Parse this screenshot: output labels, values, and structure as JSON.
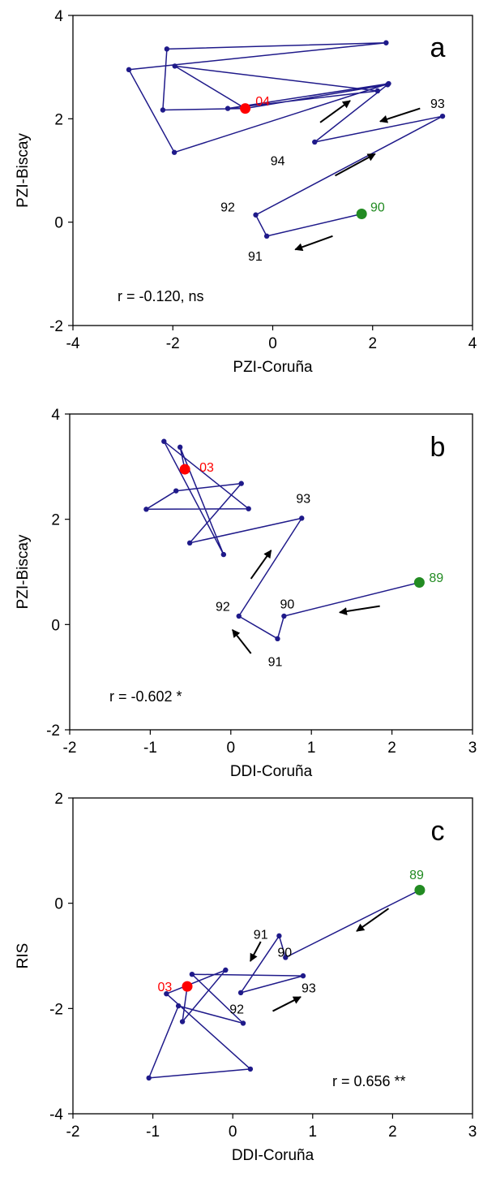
{
  "colors": {
    "line": "#1f1a8a",
    "start": "#228b22",
    "end": "#ff0000",
    "arrow": "#000000",
    "text": "#000000"
  },
  "chart_data": [
    {
      "type": "line",
      "panel_label": "a",
      "xlabel": "PZI-Coruña",
      "ylabel": "PZI-Biscay",
      "xlim": [
        -4,
        4
      ],
      "ylim": [
        -2,
        4
      ],
      "xticks": [
        "-4",
        "-2",
        "0",
        "2",
        "4"
      ],
      "yticks": [
        "4",
        "2",
        "0",
        "-2"
      ],
      "stat": "r = -0.120, ns",
      "series": [
        {
          "points": [
            [
              1.78,
              0.16
            ],
            [
              -0.12,
              -0.27
            ],
            [
              -0.34,
              0.14
            ],
            [
              3.4,
              2.05
            ],
            [
              0.84,
              1.55
            ],
            [
              2.3,
              2.66
            ],
            [
              -0.55,
              2.2
            ],
            [
              -2.2,
              2.17
            ],
            [
              -2.12,
              3.35
            ],
            [
              2.27,
              3.47
            ],
            [
              -2.88,
              2.95
            ],
            [
              -1.97,
              1.35
            ],
            [
              2.32,
              2.68
            ],
            [
              -0.9,
              2.2
            ],
            [
              2.1,
              2.54
            ],
            [
              -1.96,
              3.02
            ],
            [
              -0.55,
              2.2
            ]
          ]
        }
      ],
      "point_labels": [
        {
          "text": "90",
          "x": 2.1,
          "y": 0.3,
          "color": "start"
        },
        {
          "text": "91",
          "x": -0.35,
          "y": -0.65,
          "color": "text"
        },
        {
          "text": "92",
          "x": -0.9,
          "y": 0.3,
          "color": "text"
        },
        {
          "text": "93",
          "x": 3.3,
          "y": 2.3,
          "color": "text"
        },
        {
          "text": "94",
          "x": 0.1,
          "y": 1.2,
          "color": "text"
        },
        {
          "text": "04",
          "x": -0.2,
          "y": 2.35,
          "color": "end"
        }
      ],
      "start": [
        1.78,
        0.16
      ],
      "end": [
        -0.55,
        2.2
      ],
      "arrows": [
        {
          "from": [
            1.2,
            -0.27
          ],
          "to": [
            0.45,
            -0.53
          ]
        },
        {
          "from": [
            1.25,
            0.9
          ],
          "to": [
            2.05,
            1.32
          ]
        },
        {
          "from": [
            2.95,
            2.2
          ],
          "to": [
            2.15,
            1.95
          ]
        },
        {
          "from": [
            0.95,
            1.93
          ],
          "to": [
            1.55,
            2.35
          ]
        }
      ]
    },
    {
      "type": "line",
      "panel_label": "b",
      "xlabel": "DDI-Coruña",
      "ylabel": "PZI-Biscay",
      "xlim": [
        -2,
        3
      ],
      "ylim": [
        -2,
        4
      ],
      "xticks": [
        "-2",
        "-1",
        "0",
        "1",
        "2",
        "3"
      ],
      "yticks": [
        "4",
        "2",
        "0",
        "-2"
      ],
      "stat": "r = -0.602 *",
      "series": [
        {
          "points": [
            [
              2.34,
              0.8
            ],
            [
              0.66,
              0.16
            ],
            [
              0.58,
              -0.27
            ],
            [
              0.1,
              0.16
            ],
            [
              0.88,
              2.02
            ],
            [
              -0.51,
              1.55
            ],
            [
              0.13,
              2.68
            ],
            [
              -0.68,
              2.54
            ],
            [
              -1.05,
              2.19
            ],
            [
              0.22,
              2.2
            ],
            [
              -0.83,
              3.48
            ],
            [
              -0.09,
              1.33
            ],
            [
              -0.63,
              3.37
            ],
            [
              -0.57,
              2.95
            ]
          ]
        }
      ],
      "point_labels": [
        {
          "text": "89",
          "x": 2.55,
          "y": 0.9,
          "color": "start"
        },
        {
          "text": "90",
          "x": 0.7,
          "y": 0.4,
          "color": "text"
        },
        {
          "text": "91",
          "x": 0.55,
          "y": -0.7,
          "color": "text"
        },
        {
          "text": "92",
          "x": -0.1,
          "y": 0.35,
          "color": "text"
        },
        {
          "text": "93",
          "x": 0.9,
          "y": 2.4,
          "color": "text"
        },
        {
          "text": "03",
          "x": -0.3,
          "y": 3.0,
          "color": "end"
        }
      ],
      "start": [
        2.34,
        0.8
      ],
      "end": [
        -0.57,
        2.95
      ],
      "arrows": [
        {
          "from": [
            1.85,
            0.35
          ],
          "to": [
            1.35,
            0.23
          ]
        },
        {
          "from": [
            0.25,
            -0.55
          ],
          "to": [
            0.02,
            -0.1
          ]
        },
        {
          "from": [
            0.25,
            0.87
          ],
          "to": [
            0.5,
            1.41
          ]
        }
      ]
    },
    {
      "type": "line",
      "panel_label": "c",
      "xlabel": "DDI-Coruña",
      "ylabel": "RIS",
      "xlim": [
        -2,
        3
      ],
      "ylim": [
        -4,
        2
      ],
      "xticks": [
        "-2",
        "-1",
        "0",
        "1",
        "2",
        "3"
      ],
      "yticks": [
        "2",
        "0",
        "-2",
        "-4"
      ],
      "stat": "r = 0.656 **",
      "series": [
        {
          "points": [
            [
              2.34,
              0.25
            ],
            [
              0.66,
              -1.03
            ],
            [
              0.58,
              -0.62
            ],
            [
              0.1,
              -1.7
            ],
            [
              0.88,
              -1.38
            ],
            [
              -0.51,
              -1.35
            ],
            [
              0.13,
              -2.28
            ],
            [
              -0.68,
              -1.95
            ],
            [
              -1.05,
              -3.32
            ],
            [
              0.22,
              -3.15
            ],
            [
              -0.83,
              -1.72
            ],
            [
              -0.09,
              -1.27
            ],
            [
              -0.63,
              -2.25
            ],
            [
              -0.57,
              -1.58
            ]
          ]
        }
      ],
      "point_labels": [
        {
          "text": "89",
          "x": 2.3,
          "y": 0.55,
          "color": "start"
        },
        {
          "text": "90",
          "x": 0.65,
          "y": -0.92,
          "color": "text"
        },
        {
          "text": "91",
          "x": 0.35,
          "y": -0.58,
          "color": "text"
        },
        {
          "text": "92",
          "x": 0.05,
          "y": -2.0,
          "color": "text"
        },
        {
          "text": "93",
          "x": 0.95,
          "y": -1.6,
          "color": "text"
        },
        {
          "text": "03",
          "x": -0.85,
          "y": -1.58,
          "color": "end"
        }
      ],
      "start": [
        2.34,
        0.25
      ],
      "end": [
        -0.57,
        -1.58
      ],
      "arrows": [
        {
          "from": [
            1.95,
            -0.1
          ],
          "to": [
            1.55,
            -0.53
          ]
        },
        {
          "from": [
            0.35,
            -0.73
          ],
          "to": [
            0.22,
            -1.1
          ]
        },
        {
          "from": [
            0.5,
            -2.05
          ],
          "to": [
            0.85,
            -1.78
          ]
        }
      ]
    }
  ]
}
